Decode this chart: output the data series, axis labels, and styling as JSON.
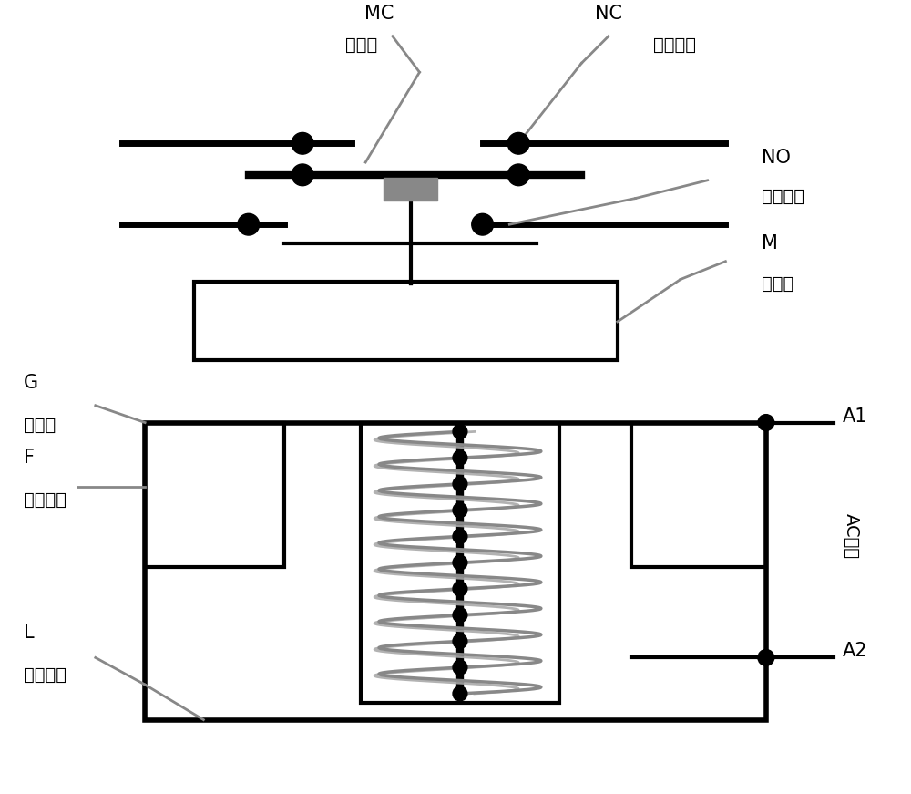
{
  "bg_color": "#ffffff",
  "line_color": "#000000",
  "gray_line_color": "#888888",
  "labels": {
    "MC": "MC",
    "MC_sub": "动触点",
    "NC": "NC",
    "NC_sub": "常闭触点",
    "NO": "NO",
    "NO_sub": "常开触点",
    "M": "M",
    "M_sub": "动铁芯",
    "G": "G",
    "G_sub": "静铁芯",
    "F": "F",
    "F_sub": "复位弹簧",
    "L": "L",
    "L_sub": "励磁线圈",
    "A1": "A1",
    "A2": "A2",
    "AC": "AC电压"
  },
  "font_size_main": 15,
  "font_size_sub": 14
}
